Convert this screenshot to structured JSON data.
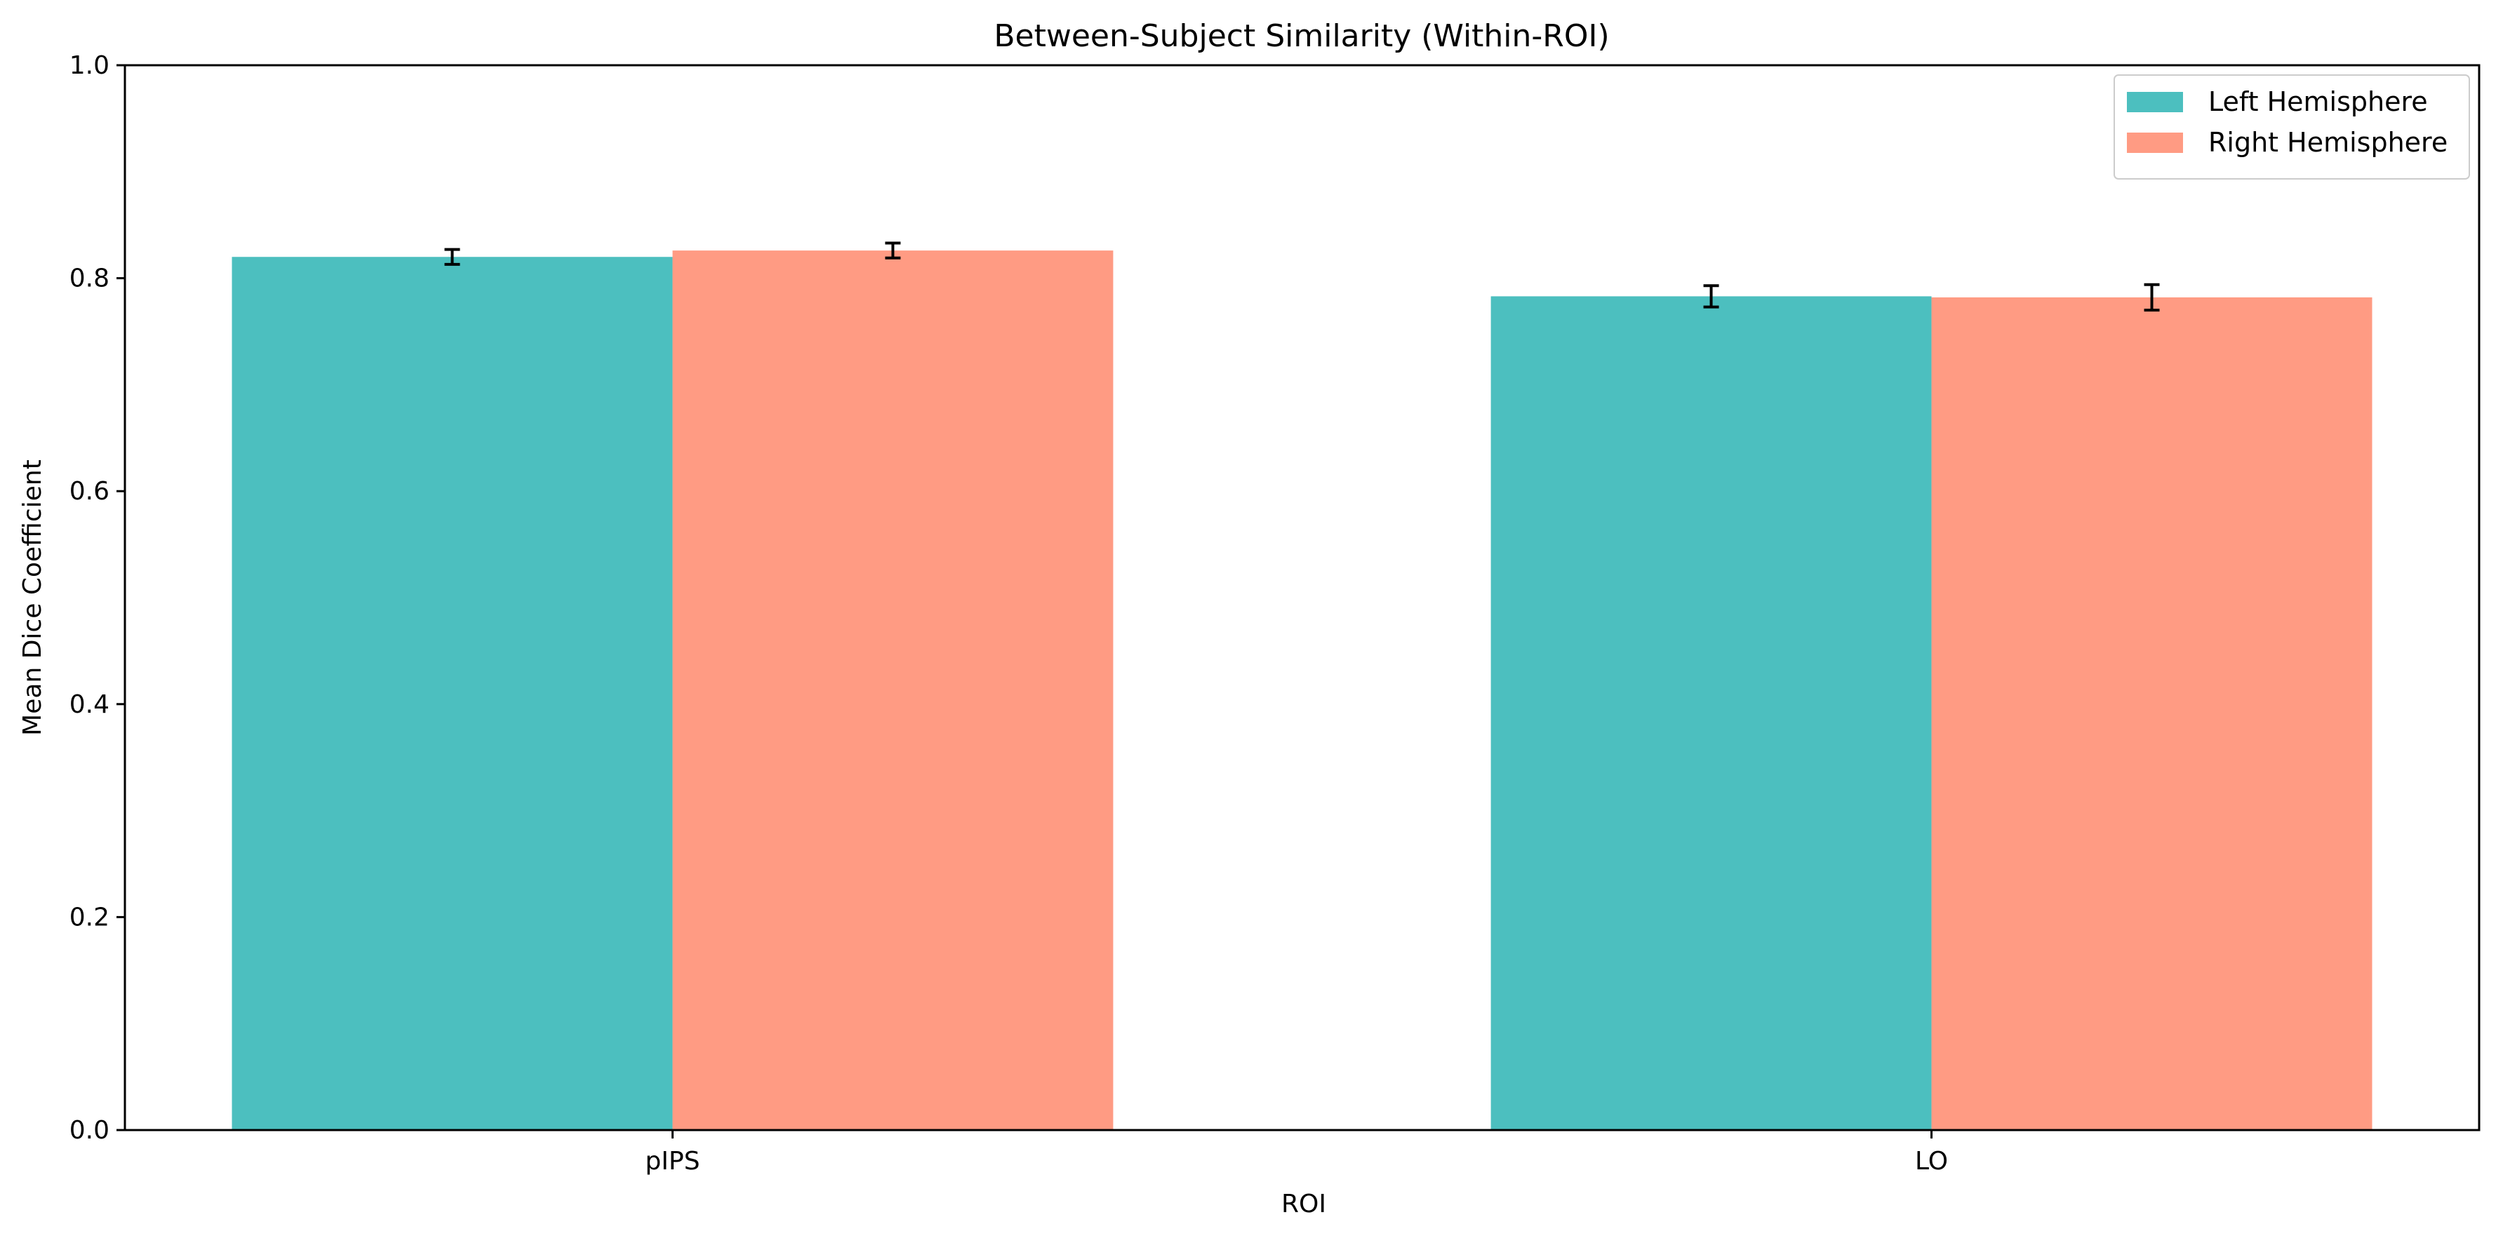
{
  "chart_data": {
    "type": "bar",
    "title": "Between-Subject Similarity (Within-ROI)",
    "xlabel": "ROI",
    "ylabel": "Mean Dice Coefficient",
    "categories": [
      "pIPS",
      "LO"
    ],
    "series": [
      {
        "name": "Left Hemisphere",
        "color": "#4cbfbf",
        "values": [
          0.82,
          0.783
        ],
        "errors": [
          0.007,
          0.01
        ]
      },
      {
        "name": "Right Hemisphere",
        "color": "#ff9b83",
        "values": [
          0.826,
          0.782
        ],
        "errors": [
          0.007,
          0.012
        ]
      }
    ],
    "ylim": [
      0.0,
      1.0
    ],
    "yticks": [
      0.0,
      0.2,
      0.4,
      0.6,
      0.8,
      1.0
    ],
    "ytick_labels": [
      "0.0",
      "0.2",
      "0.4",
      "0.6",
      "0.8",
      "1.0"
    ],
    "grid": false,
    "legend_position": "top-right"
  }
}
